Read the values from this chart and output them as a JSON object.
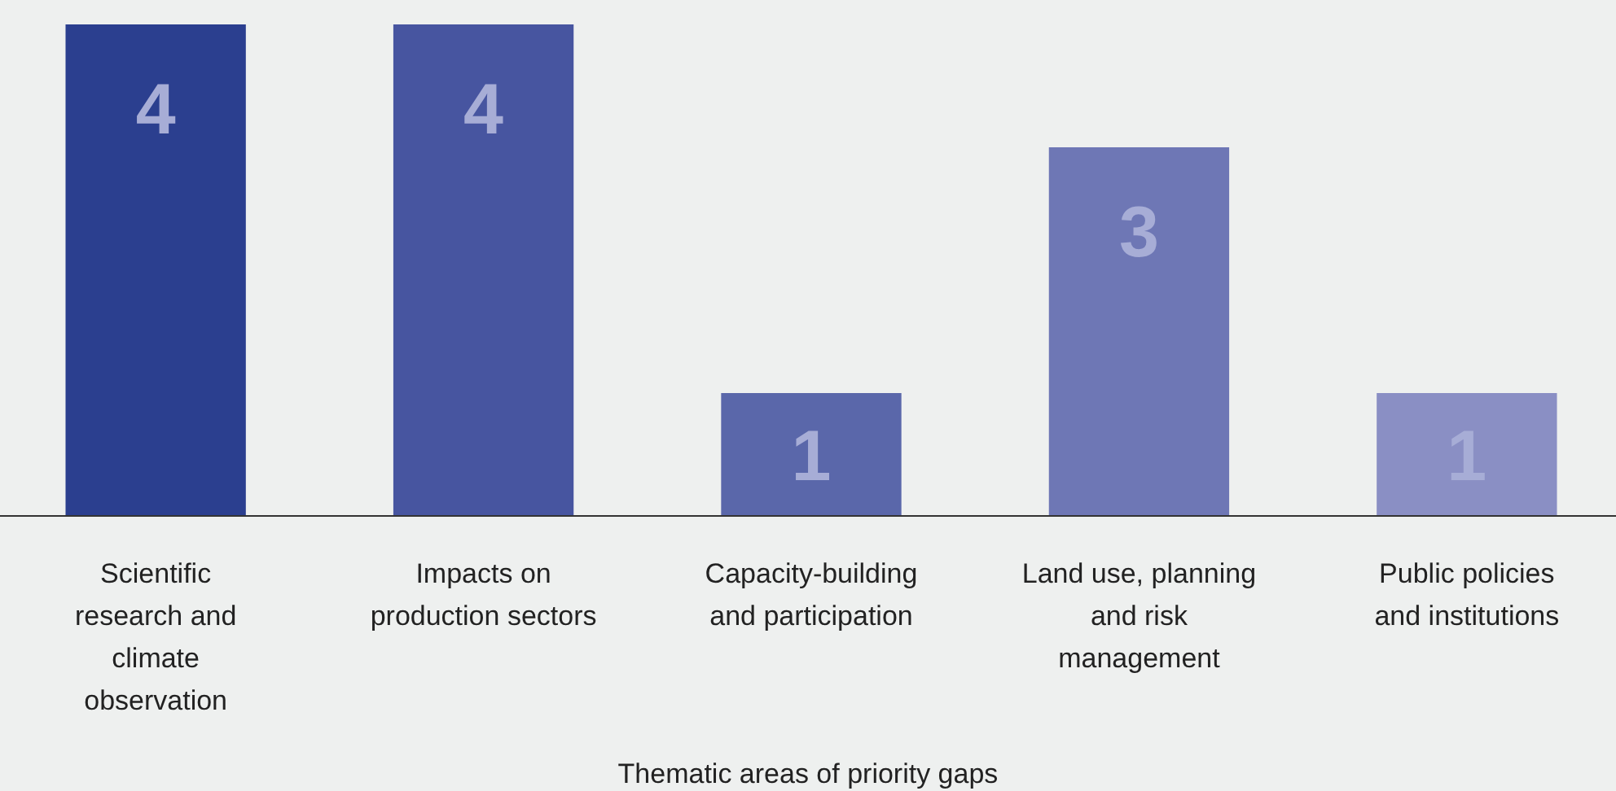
{
  "chart_data": {
    "type": "bar",
    "xlabel": "Thematic areas of priority gaps",
    "categories": [
      "Scientific research and climate observation",
      "Impacts on production sectors",
      "Capacity-building and participation",
      "Land use, planning and risk management",
      "Public policies and institutions"
    ],
    "values": [
      4,
      4,
      1,
      3,
      1
    ],
    "colors": [
      "#2b3f8f",
      "#4755a0",
      "#5a67aa",
      "#6e77b5",
      "#8a8fc4"
    ],
    "data_labels": true
  }
}
